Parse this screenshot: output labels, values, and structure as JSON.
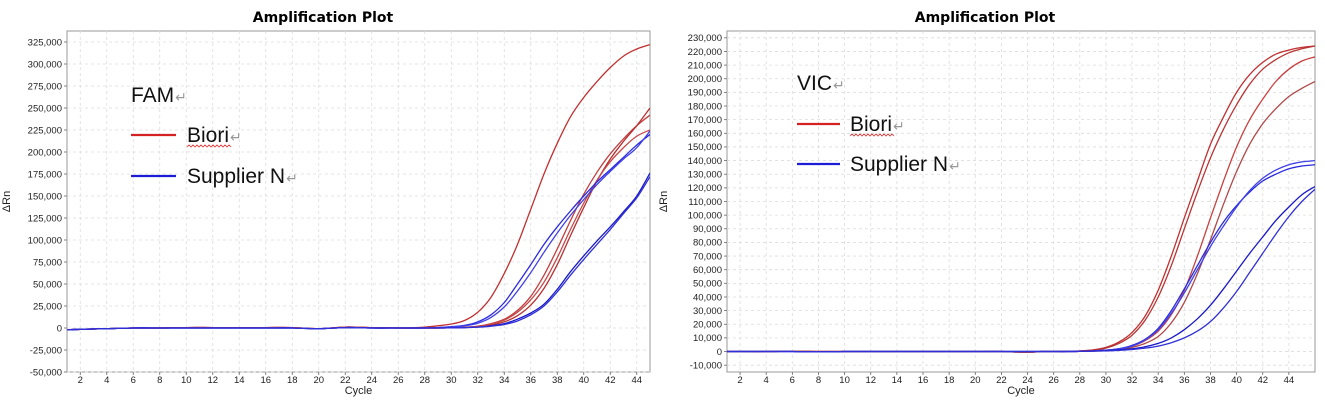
{
  "chart_data": [
    {
      "type": "line",
      "title": "Amplification Plot",
      "xlabel": "Cycle",
      "ylabel": "ΔRn",
      "xlim": [
        1,
        45
      ],
      "ylim": [
        -50000,
        337500
      ],
      "x_ticks": [
        "2",
        "4",
        "6",
        "8",
        "10",
        "12",
        "14",
        "16",
        "18",
        "20",
        "22",
        "24",
        "26",
        "28",
        "30",
        "32",
        "34",
        "36",
        "38",
        "40",
        "42",
        "44"
      ],
      "y_ticks": [
        "-50,000",
        "-25,000",
        "0",
        "25,000",
        "50,000",
        "75,000",
        "100,000",
        "125,000",
        "150,000",
        "175,000",
        "200,000",
        "225,000",
        "250,000",
        "275,000",
        "300,000",
        "325,000"
      ],
      "grid": true,
      "legend": {
        "channel": "FAM",
        "items": [
          {
            "label": "Biori",
            "color": "#d42222"
          },
          {
            "label": "Supplier N",
            "color": "#1d1dd6"
          }
        ]
      },
      "x": [
        1,
        2,
        4,
        6,
        8,
        10,
        12,
        14,
        16,
        18,
        20,
        22,
        24,
        26,
        28,
        29,
        30,
        31,
        32,
        33,
        34,
        35,
        36,
        37,
        38,
        39,
        40,
        41,
        42,
        43,
        44,
        45
      ],
      "series": [
        {
          "group": "Biori",
          "color": "#c03030",
          "values": [
            -2000,
            -1500,
            -800,
            0,
            0,
            500,
            500,
            500,
            500,
            500,
            -800,
            1000,
            500,
            0,
            1000,
            2500,
            4500,
            8500,
            18000,
            35000,
            62000,
            95000,
            135000,
            175000,
            210000,
            240000,
            262000,
            280000,
            296000,
            309000,
            317000,
            322000
          ]
        },
        {
          "group": "Biori",
          "color": "#c04040",
          "values": [
            -2000,
            -1500,
            -800,
            0,
            0,
            500,
            500,
            500,
            500,
            500,
            -800,
            1000,
            500,
            0,
            0,
            0,
            500,
            800,
            2000,
            5000,
            10000,
            20000,
            36000,
            60000,
            90000,
            122000,
            152000,
            177000,
            198000,
            215000,
            230000,
            242000
          ]
        },
        {
          "group": "Biori",
          "color": "#b83030",
          "values": [
            -2000,
            -1500,
            -800,
            0,
            0,
            500,
            500,
            500,
            500,
            500,
            -800,
            1000,
            500,
            0,
            0,
            0,
            300,
            500,
            1500,
            3500,
            7000,
            14000,
            26000,
            45000,
            72000,
            105000,
            137000,
            167000,
            192000,
            212000,
            230000,
            250000
          ]
        },
        {
          "group": "Biori",
          "color": "#c84848",
          "values": [
            -2000,
            -1500,
            -800,
            0,
            0,
            500,
            500,
            500,
            500,
            500,
            -800,
            1000,
            500,
            0,
            0,
            0,
            500,
            800,
            1800,
            4500,
            9000,
            18000,
            32000,
            52000,
            80000,
            112000,
            142000,
            168000,
            189000,
            205000,
            218000,
            225000
          ]
        },
        {
          "group": "Supplier N",
          "color": "#2a2ae0",
          "values": [
            -2000,
            -1500,
            -800,
            0,
            0,
            0,
            0,
            0,
            0,
            0,
            -800,
            500,
            0,
            0,
            0,
            500,
            1500,
            3000,
            7000,
            15000,
            29000,
            50000,
            72000,
            95000,
            115000,
            133000,
            150000,
            166000,
            180000,
            194000,
            208000,
            220000
          ]
        },
        {
          "group": "Supplier N",
          "color": "#4040e8",
          "values": [
            -2000,
            -1500,
            -800,
            0,
            0,
            0,
            0,
            0,
            0,
            0,
            -800,
            500,
            0,
            0,
            0,
            500,
            1300,
            2500,
            5500,
            12000,
            24000,
            42000,
            63000,
            86000,
            108000,
            128000,
            146000,
            163000,
            178000,
            192000,
            205000,
            224000
          ]
        },
        {
          "group": "Supplier N",
          "color": "#1818c8",
          "values": [
            -2000,
            -1500,
            -800,
            0,
            0,
            0,
            0,
            0,
            0,
            0,
            -800,
            500,
            0,
            0,
            0,
            0,
            300,
            500,
            1000,
            2500,
            5000,
            10000,
            17000,
            27000,
            44000,
            64000,
            82000,
            99000,
            115000,
            132000,
            150000,
            176000
          ]
        },
        {
          "group": "Supplier N",
          "color": "#3030d8",
          "values": [
            -2000,
            -1500,
            -800,
            0,
            0,
            0,
            0,
            0,
            0,
            0,
            -800,
            500,
            0,
            0,
            0,
            0,
            300,
            500,
            1000,
            2000,
            4000,
            8000,
            15000,
            25000,
            41000,
            60000,
            78000,
            95000,
            112000,
            130000,
            148000,
            172000
          ]
        }
      ]
    },
    {
      "type": "line",
      "title": "Amplification Plot",
      "xlabel": "Cycle",
      "ylabel": "ΔRn",
      "xlim": [
        1,
        46
      ],
      "ylim": [
        -15000,
        235000
      ],
      "x_ticks": [
        "2",
        "4",
        "6",
        "8",
        "10",
        "12",
        "14",
        "16",
        "18",
        "20",
        "22",
        "24",
        "26",
        "28",
        "30",
        "32",
        "34",
        "36",
        "38",
        "40",
        "42",
        "44"
      ],
      "y_ticks": [
        "-10,000",
        "0",
        "10,000",
        "20,000",
        "30,000",
        "40,000",
        "50,000",
        "60,000",
        "70,000",
        "80,000",
        "90,000",
        "100,000",
        "110,000",
        "120,000",
        "130,000",
        "140,000",
        "150,000",
        "160,000",
        "170,000",
        "180,000",
        "190,000",
        "200,000",
        "210,000",
        "220,000",
        "230,000"
      ],
      "grid": true,
      "legend": {
        "channel": "VIC",
        "items": [
          {
            "label": "Biori",
            "color": "#d42222"
          },
          {
            "label": "Supplier N",
            "color": "#1d1dd6"
          }
        ]
      },
      "x": [
        1,
        2,
        4,
        6,
        8,
        10,
        12,
        14,
        16,
        18,
        20,
        22,
        24,
        25,
        26,
        27,
        28,
        29,
        30,
        31,
        32,
        33,
        34,
        35,
        36,
        37,
        38,
        39,
        40,
        41,
        42,
        43,
        44,
        45,
        46
      ],
      "series": [
        {
          "group": "Biori",
          "color": "#c03030",
          "values": [
            0,
            0,
            0,
            300,
            0,
            0,
            0,
            0,
            0,
            0,
            0,
            0,
            -500,
            0,
            0,
            200,
            500,
            1200,
            3000,
            7000,
            14000,
            26000,
            45000,
            70000,
            98000,
            125000,
            152000,
            172000,
            190000,
            203000,
            212000,
            218000,
            221000,
            223000,
            224000
          ]
        },
        {
          "group": "Biori",
          "color": "#b83535",
          "values": [
            0,
            0,
            0,
            300,
            0,
            0,
            0,
            0,
            0,
            0,
            0,
            0,
            -500,
            0,
            0,
            200,
            400,
            1000,
            2500,
            6000,
            12000,
            23000,
            40000,
            63000,
            90000,
            117000,
            142000,
            163000,
            181000,
            196000,
            207000,
            214000,
            219000,
            222000,
            224000
          ]
        },
        {
          "group": "Biori",
          "color": "#c84040",
          "values": [
            0,
            0,
            0,
            300,
            0,
            0,
            0,
            0,
            0,
            0,
            0,
            0,
            -500,
            0,
            0,
            0,
            200,
            400,
            1000,
            2000,
            4000,
            8000,
            15000,
            27000,
            45000,
            70000,
            98000,
            125000,
            150000,
            170000,
            185000,
            198000,
            207000,
            213000,
            216000
          ]
        },
        {
          "group": "Biori",
          "color": "#b04848",
          "values": [
            0,
            0,
            0,
            300,
            0,
            0,
            0,
            0,
            0,
            0,
            0,
            0,
            -500,
            0,
            0,
            0,
            200,
            300,
            700,
            1500,
            3000,
            6000,
            11000,
            21000,
            36000,
            57000,
            82000,
            108000,
            132000,
            152000,
            167000,
            178000,
            187000,
            193000,
            198000
          ]
        },
        {
          "group": "Supplier N",
          "color": "#2a2ae0",
          "values": [
            0,
            0,
            0,
            0,
            -300,
            0,
            0,
            0,
            0,
            0,
            0,
            0,
            0,
            0,
            0,
            0,
            200,
            500,
            1000,
            2000,
            4500,
            9000,
            17000,
            30000,
            46000,
            63000,
            80000,
            95000,
            107000,
            117000,
            125000,
            130000,
            134000,
            136000,
            137000
          ]
        },
        {
          "group": "Supplier N",
          "color": "#4040e8",
          "values": [
            0,
            0,
            0,
            0,
            -300,
            0,
            0,
            0,
            0,
            0,
            0,
            0,
            0,
            0,
            0,
            0,
            200,
            400,
            900,
            2000,
            4000,
            8500,
            16000,
            28000,
            43000,
            60000,
            77000,
            92000,
            106000,
            118000,
            127000,
            133000,
            137000,
            139000,
            140000
          ]
        },
        {
          "group": "Supplier N",
          "color": "#1818c8",
          "values": [
            0,
            0,
            0,
            0,
            -300,
            0,
            0,
            0,
            0,
            0,
            0,
            0,
            0,
            0,
            0,
            0,
            200,
            400,
            700,
            1200,
            2000,
            3500,
            6000,
            10000,
            16000,
            24000,
            34000,
            46000,
            59000,
            72000,
            84000,
            96000,
            106000,
            115000,
            121000
          ]
        },
        {
          "group": "Supplier N",
          "color": "#3030d8",
          "values": [
            0,
            0,
            0,
            0,
            -300,
            0,
            0,
            0,
            0,
            0,
            0,
            0,
            0,
            0,
            0,
            0,
            100,
            300,
            500,
            800,
            1500,
            2500,
            4000,
            6500,
            10000,
            15000,
            22000,
            32000,
            44000,
            58000,
            72000,
            86000,
            99000,
            110000,
            119000
          ]
        }
      ]
    }
  ]
}
